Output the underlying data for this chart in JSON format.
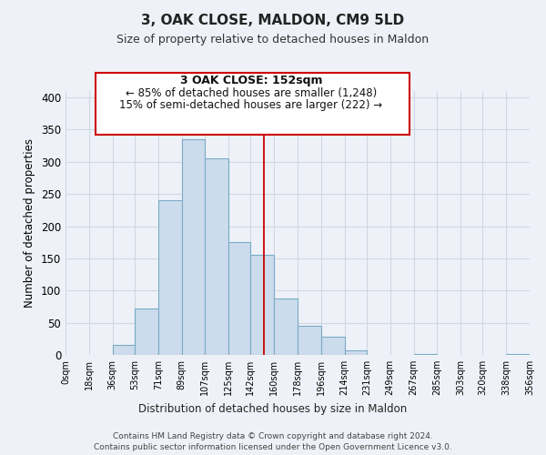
{
  "title": "3, OAK CLOSE, MALDON, CM9 5LD",
  "subtitle": "Size of property relative to detached houses in Maldon",
  "xlabel": "Distribution of detached houses by size in Maldon",
  "ylabel": "Number of detached properties",
  "bin_edges": [
    0,
    18,
    36,
    53,
    71,
    89,
    107,
    125,
    142,
    160,
    178,
    196,
    214,
    231,
    249,
    267,
    285,
    303,
    320,
    338,
    356
  ],
  "bin_labels": [
    "0sqm",
    "18sqm",
    "36sqm",
    "53sqm",
    "71sqm",
    "89sqm",
    "107sqm",
    "125sqm",
    "142sqm",
    "160sqm",
    "178sqm",
    "196sqm",
    "214sqm",
    "231sqm",
    "249sqm",
    "267sqm",
    "285sqm",
    "303sqm",
    "320sqm",
    "338sqm",
    "356sqm"
  ],
  "counts": [
    0,
    0,
    15,
    72,
    240,
    335,
    305,
    175,
    155,
    88,
    45,
    28,
    7,
    0,
    0,
    2,
    0,
    0,
    0,
    2
  ],
  "bar_color": "#ccdcec",
  "bar_edge_color": "#7aaac8",
  "reference_line_x": 152,
  "reference_line_color": "#cc0000",
  "annotation_title": "3 OAK CLOSE: 152sqm",
  "annotation_line1": "← 85% of detached houses are smaller (1,248)",
  "annotation_line2": "15% of semi-detached houses are larger (222) →",
  "annotation_box_color": "#ffffff",
  "annotation_box_edge_color": "#cc0000",
  "ylim": [
    0,
    410
  ],
  "background_color": "#eef2f8",
  "grid_color": "#d0d8e4",
  "footer1": "Contains HM Land Registry data © Crown copyright and database right 2024.",
  "footer2": "Contains public sector information licensed under the Open Government Licence v3.0."
}
